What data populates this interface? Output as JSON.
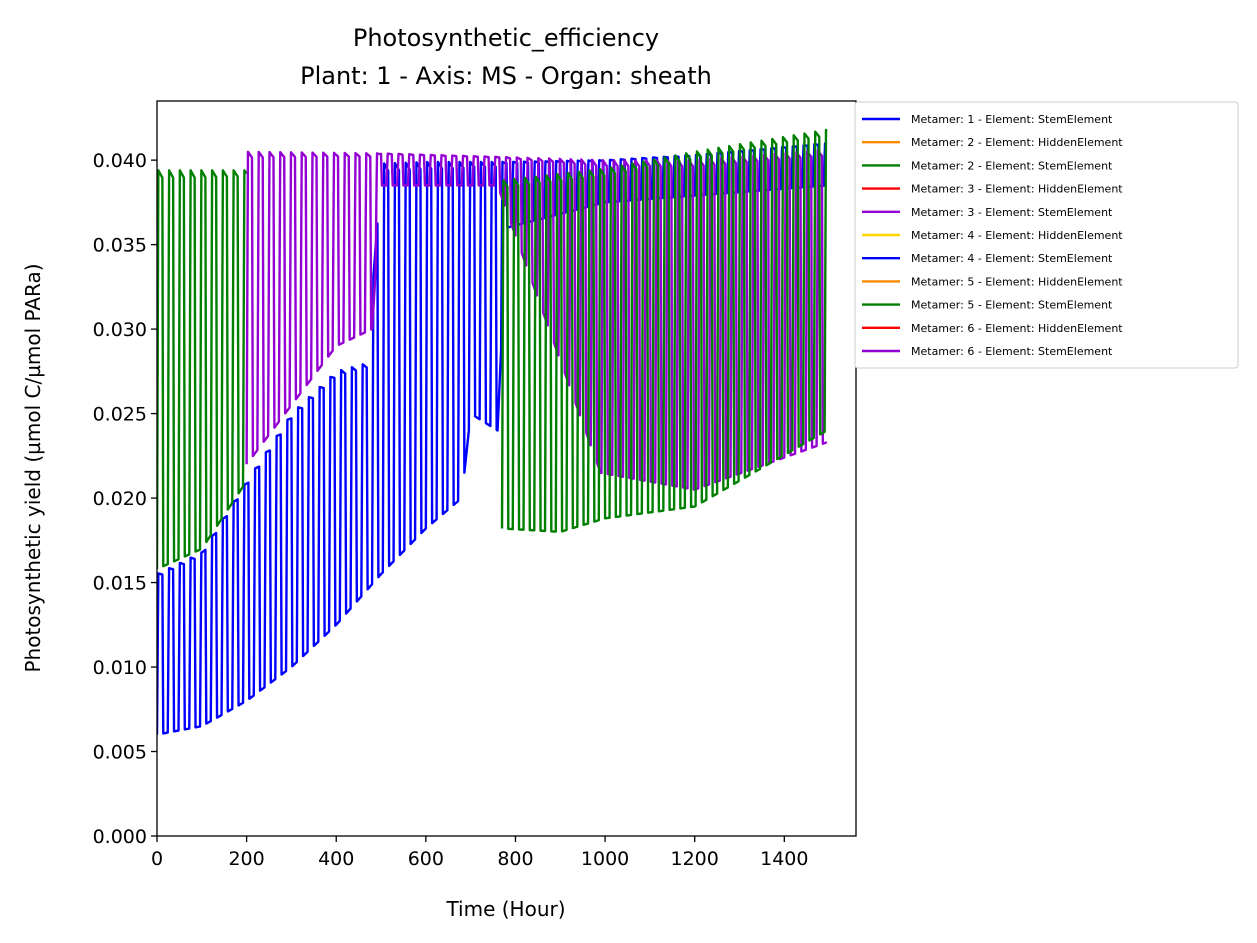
{
  "chart_data": {
    "type": "line",
    "title": "Photosynthetic_efficiency",
    "subtitle": "Plant: 1 - Axis: MS - Organ: sheath",
    "xlabel": "Time (Hour)",
    "ylabel": "Photosynthetic yield (µmol C/µmol PARa)",
    "xlim": [
      0,
      1560
    ],
    "ylim": [
      0,
      0.0435
    ],
    "xticks": [
      0,
      200,
      400,
      600,
      800,
      1000,
      1200,
      1400
    ],
    "yticks": [
      0.0,
      0.005,
      0.01,
      0.015,
      0.02,
      0.025,
      0.03,
      0.035,
      0.04
    ],
    "xtick_labels": [
      "0",
      "200",
      "400",
      "600",
      "800",
      "1000",
      "1200",
      "1400"
    ],
    "ytick_labels": [
      "0.000",
      "0.005",
      "0.010",
      "0.015",
      "0.020",
      "0.025",
      "0.030",
      "0.035",
      "0.040"
    ],
    "grid": false,
    "legend_position": "outside-top-right",
    "period_hours": 24,
    "series": [
      {
        "name": "Metamer: 1 - Element: StemElement",
        "color": "#0000ff",
        "t_start": 0,
        "t_end": 1495,
        "max_points": [
          [
            0,
            0.0155
          ],
          [
            100,
            0.0168
          ],
          [
            200,
            0.021
          ],
          [
            300,
            0.025
          ],
          [
            400,
            0.0275
          ],
          [
            470,
            0.028
          ],
          [
            500,
            0.0398
          ],
          [
            600,
            0.0399
          ],
          [
            700,
            0.0399
          ],
          [
            800,
            0.0399
          ],
          [
            1000,
            0.04
          ],
          [
            1200,
            0.0403
          ],
          [
            1495,
            0.041
          ]
        ],
        "min_points": [
          [
            0,
            0.006
          ],
          [
            100,
            0.0065
          ],
          [
            200,
            0.008
          ],
          [
            300,
            0.01
          ],
          [
            400,
            0.0125
          ],
          [
            500,
            0.0155
          ],
          [
            600,
            0.0182
          ],
          [
            680,
            0.02
          ],
          [
            700,
            0.025
          ],
          [
            760,
            0.024
          ],
          [
            780,
            0.036
          ],
          [
            1000,
            0.0375
          ],
          [
            1495,
            0.0385
          ]
        ]
      },
      {
        "name": "Metamer: 2 - Element: HiddenElement",
        "color": "#ff8c00",
        "t_start": 0,
        "t_end": 0,
        "max_points": [],
        "min_points": []
      },
      {
        "name": "Metamer: 2 - Element: StemElement",
        "color": "#008000",
        "t_start": 0,
        "t_end": 200,
        "max_points": [
          [
            0,
            0.0394
          ],
          [
            200,
            0.0394
          ]
        ],
        "min_points": [
          [
            0,
            0.0158
          ],
          [
            100,
            0.017
          ],
          [
            200,
            0.021
          ]
        ]
      },
      {
        "name": "Metamer: 3 - Element: HiddenElement",
        "color": "#ff0000",
        "t_start": 0,
        "t_end": 0,
        "max_points": [],
        "min_points": []
      },
      {
        "name": "Metamer: 3 - Element: StemElement",
        "color": "#9400d3",
        "t_start": 200,
        "t_end": 1495,
        "max_points": [
          [
            200,
            0.0405
          ],
          [
            500,
            0.0404
          ],
          [
            1000,
            0.04
          ],
          [
            1200,
            0.04
          ],
          [
            1495,
            0.0406
          ]
        ],
        "min_points": [
          [
            200,
            0.022
          ],
          [
            400,
            0.029
          ],
          [
            480,
            0.03
          ],
          [
            500,
            0.0385
          ],
          [
            760,
            0.0385
          ],
          [
            990,
            0.0215
          ],
          [
            1200,
            0.0205
          ],
          [
            1495,
            0.0233
          ]
        ]
      },
      {
        "name": "Metamer: 4 - Element: HiddenElement",
        "color": "#ffd700",
        "t_start": 0,
        "t_end": 0,
        "max_points": [],
        "min_points": []
      },
      {
        "name": "Metamer: 4 - Element: StemElement",
        "color": "#0000ff",
        "t_start": 0,
        "t_end": 0,
        "max_points": [],
        "min_points": []
      },
      {
        "name": "Metamer: 5 - Element: HiddenElement",
        "color": "#ff8c00",
        "t_start": 0,
        "t_end": 0,
        "max_points": [],
        "min_points": []
      },
      {
        "name": "Metamer: 5 - Element: StemElement",
        "color": "#008000",
        "t_start": 770,
        "t_end": 1495,
        "max_points": [
          [
            770,
            0.0388
          ],
          [
            1000,
            0.0395
          ],
          [
            1200,
            0.0405
          ],
          [
            1495,
            0.0418
          ]
        ],
        "min_points": [
          [
            770,
            0.0182
          ],
          [
            900,
            0.018
          ],
          [
            1000,
            0.0188
          ],
          [
            1200,
            0.0195
          ],
          [
            1495,
            0.024
          ]
        ]
      },
      {
        "name": "Metamer: 6 - Element: HiddenElement",
        "color": "#ff0000",
        "t_start": 0,
        "t_end": 0,
        "max_points": [],
        "min_points": []
      },
      {
        "name": "Metamer: 6 - Element: StemElement",
        "color": "#9400d3",
        "t_start": 0,
        "t_end": 0,
        "max_points": [],
        "min_points": []
      }
    ]
  }
}
